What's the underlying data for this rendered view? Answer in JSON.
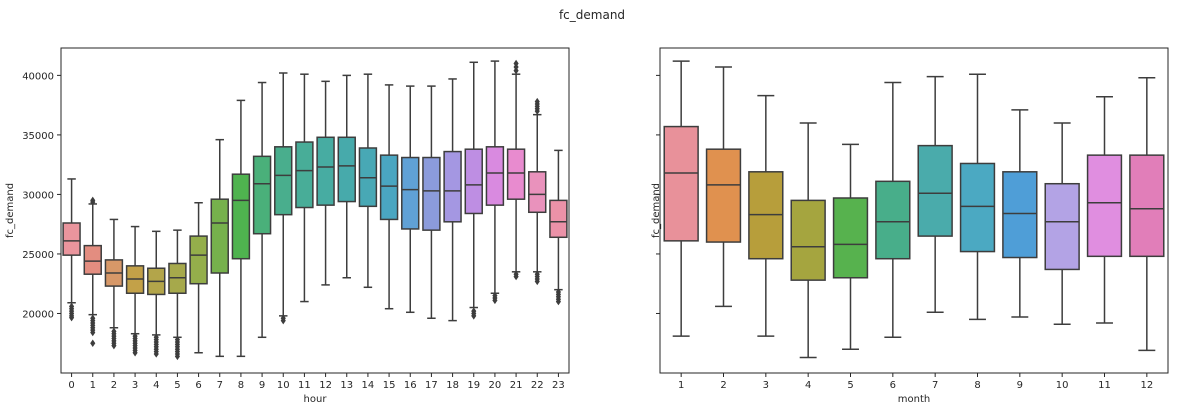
{
  "suptitle": "fc_demand",
  "chart_data": [
    {
      "type": "box",
      "title": "",
      "xlabel": "hour",
      "ylabel": "fc_demand",
      "ylim": [
        15000,
        42300
      ],
      "yticks": [
        20000,
        25000,
        30000,
        35000,
        40000
      ],
      "categories": [
        "0",
        "1",
        "2",
        "3",
        "4",
        "5",
        "6",
        "7",
        "8",
        "9",
        "10",
        "11",
        "12",
        "13",
        "14",
        "15",
        "16",
        "17",
        "18",
        "19",
        "20",
        "21",
        "22",
        "23"
      ],
      "colors": [
        "#ea959d",
        "#e38d80",
        "#d79868",
        "#c3a148",
        "#b3a54a",
        "#a6a94b",
        "#94ae4b",
        "#76b14c",
        "#4fb34f",
        "#4ab07a",
        "#49ae8d",
        "#48ad98",
        "#47aca2",
        "#47aaab",
        "#48a8b5",
        "#4aa6c1",
        "#60a1d6",
        "#8b9bdb",
        "#a497e2",
        "#be8ee3",
        "#d98ae0",
        "#e88bcf",
        "#e992bc",
        "#eb92a8"
      ],
      "boxes": [
        {
          "q1": 24900,
          "median": 26100,
          "q3": 27600,
          "whislo": 20900,
          "whishi": 31300,
          "fliers": [
            20600,
            20400,
            20200,
            20000,
            19800,
            19650
          ]
        },
        {
          "q1": 23300,
          "median": 24400,
          "q3": 25700,
          "whislo": 19900,
          "whishi": 29200,
          "fliers": [
            29500,
            29350,
            19600,
            19400,
            19200,
            19000,
            18800,
            18600,
            18400,
            17500
          ]
        },
        {
          "q1": 22300,
          "median": 23400,
          "q3": 24500,
          "whislo": 18800,
          "whishi": 27900,
          "fliers": [
            18500,
            18300,
            18100,
            17900,
            17700,
            17500,
            17300
          ]
        },
        {
          "q1": 21700,
          "median": 22900,
          "q3": 24000,
          "whislo": 18300,
          "whishi": 27300,
          "fliers": [
            18100,
            17900,
            17700,
            17500,
            17300,
            17100,
            16900,
            16700
          ]
        },
        {
          "q1": 21600,
          "median": 22700,
          "q3": 23800,
          "whislo": 18200,
          "whishi": 26900,
          "fliers": [
            18000,
            17800,
            17600,
            17400,
            17200,
            17000,
            16800,
            16600
          ]
        },
        {
          "q1": 21700,
          "median": 23000,
          "q3": 24200,
          "whislo": 18000,
          "whishi": 27000,
          "fliers": [
            17800,
            17600,
            17400,
            17200,
            17000,
            16800,
            16600,
            16400
          ]
        },
        {
          "q1": 22500,
          "median": 24900,
          "q3": 26500,
          "whislo": 16700,
          "whishi": 29300,
          "fliers": []
        },
        {
          "q1": 23400,
          "median": 27600,
          "q3": 29600,
          "whislo": 16400,
          "whishi": 34600,
          "fliers": []
        },
        {
          "q1": 24600,
          "median": 29500,
          "q3": 31700,
          "whislo": 16400,
          "whishi": 37900,
          "fliers": []
        },
        {
          "q1": 26700,
          "median": 30900,
          "q3": 33200,
          "whislo": 18000,
          "whishi": 39400,
          "fliers": []
        },
        {
          "q1": 28300,
          "median": 31600,
          "q3": 34000,
          "whislo": 19800,
          "whishi": 40200,
          "fliers": [
            19600,
            19400
          ]
        },
        {
          "q1": 28900,
          "median": 32000,
          "q3": 34400,
          "whislo": 21000,
          "whishi": 40100,
          "fliers": []
        },
        {
          "q1": 29100,
          "median": 32300,
          "q3": 34800,
          "whislo": 22400,
          "whishi": 39500,
          "fliers": []
        },
        {
          "q1": 29400,
          "median": 32400,
          "q3": 34800,
          "whislo": 23000,
          "whishi": 40000,
          "fliers": []
        },
        {
          "q1": 29000,
          "median": 31400,
          "q3": 33900,
          "whislo": 22200,
          "whishi": 40100,
          "fliers": []
        },
        {
          "q1": 27900,
          "median": 30700,
          "q3": 33300,
          "whislo": 20400,
          "whishi": 39200,
          "fliers": []
        },
        {
          "q1": 27100,
          "median": 30400,
          "q3": 33100,
          "whislo": 20100,
          "whishi": 39100,
          "fliers": []
        },
        {
          "q1": 27000,
          "median": 30300,
          "q3": 33100,
          "whislo": 19600,
          "whishi": 39100,
          "fliers": []
        },
        {
          "q1": 27700,
          "median": 30300,
          "q3": 33600,
          "whislo": 19400,
          "whishi": 39700,
          "fliers": []
        },
        {
          "q1": 28400,
          "median": 30800,
          "q3": 33800,
          "whislo": 20500,
          "whishi": 41100,
          "fliers": [
            20200,
            20000,
            19800
          ]
        },
        {
          "q1": 29100,
          "median": 31800,
          "q3": 34000,
          "whislo": 21700,
          "whishi": 41200,
          "fliers": [
            21500,
            21300,
            21100
          ]
        },
        {
          "q1": 29600,
          "median": 31800,
          "q3": 33800,
          "whislo": 23500,
          "whishi": 40100,
          "fliers": [
            40400,
            40700,
            41000,
            23300,
            23100
          ]
        },
        {
          "q1": 28500,
          "median": 30000,
          "q3": 31900,
          "whislo": 23500,
          "whishi": 36700,
          "fliers": [
            37000,
            37200,
            37400,
            37600,
            37800,
            23300,
            23100,
            22900,
            22700
          ]
        },
        {
          "q1": 26400,
          "median": 27700,
          "q3": 29500,
          "whislo": 22000,
          "whishi": 33700,
          "fliers": [
            21800,
            21600,
            21400,
            21200,
            21000
          ]
        }
      ]
    },
    {
      "type": "box",
      "title": "",
      "xlabel": "month",
      "ylabel": "fc_demand",
      "ylim": [
        15000,
        42300
      ],
      "yticks": [
        20000,
        25000,
        30000,
        35000,
        40000
      ],
      "categories": [
        "1",
        "2",
        "3",
        "4",
        "5",
        "6",
        "7",
        "8",
        "9",
        "10",
        "11",
        "12"
      ],
      "colors": [
        "#e8919a",
        "#e0914f",
        "#b79e3b",
        "#a5a53f",
        "#57b24e",
        "#48ae8a",
        "#4aabab",
        "#4ba9c2",
        "#4f9ed7",
        "#b3a3e5",
        "#e08ee0",
        "#e17eb9"
      ],
      "boxes": [
        {
          "q1": 26100,
          "median": 31800,
          "q3": 35700,
          "whislo": 18100,
          "whishi": 41200,
          "fliers": []
        },
        {
          "q1": 26000,
          "median": 30800,
          "q3": 33800,
          "whislo": 20600,
          "whishi": 40700,
          "fliers": []
        },
        {
          "q1": 24600,
          "median": 28300,
          "q3": 31900,
          "whislo": 18100,
          "whishi": 38300,
          "fliers": []
        },
        {
          "q1": 22800,
          "median": 25600,
          "q3": 29500,
          "whislo": 16300,
          "whishi": 36000,
          "fliers": []
        },
        {
          "q1": 23000,
          "median": 25800,
          "q3": 29700,
          "whislo": 17000,
          "whishi": 34200,
          "fliers": []
        },
        {
          "q1": 24600,
          "median": 27700,
          "q3": 31100,
          "whislo": 18000,
          "whishi": 39400,
          "fliers": []
        },
        {
          "q1": 26500,
          "median": 30100,
          "q3": 34100,
          "whislo": 20100,
          "whishi": 39900,
          "fliers": []
        },
        {
          "q1": 25200,
          "median": 29000,
          "q3": 32600,
          "whislo": 19500,
          "whishi": 40100,
          "fliers": []
        },
        {
          "q1": 24700,
          "median": 28400,
          "q3": 31900,
          "whislo": 19700,
          "whishi": 37100,
          "fliers": []
        },
        {
          "q1": 23700,
          "median": 27700,
          "q3": 30900,
          "whislo": 19100,
          "whishi": 36000,
          "fliers": []
        },
        {
          "q1": 24800,
          "median": 29300,
          "q3": 33300,
          "whislo": 19200,
          "whishi": 38200,
          "fliers": []
        },
        {
          "q1": 24800,
          "median": 28800,
          "q3": 33300,
          "whislo": 16900,
          "whishi": 39800,
          "fliers": []
        }
      ]
    }
  ]
}
